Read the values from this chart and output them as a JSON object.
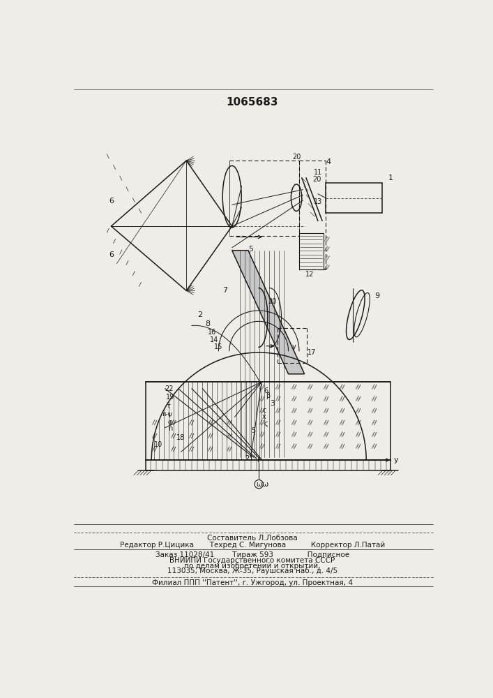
{
  "title": "1065683",
  "bg": "#f0ede8",
  "lc": "#1a1a1a",
  "footer": [
    [
      353,
      845,
      "Составитель Л.Лобзова",
      7.5
    ],
    [
      353,
      858,
      "Редактор Р.Цицика       Техред С. Мигунова           Корректор Л.Патай",
      7.5
    ],
    [
      353,
      876,
      "Заказ 11028/41        Тираж 593               Подписное",
      7.5
    ],
    [
      353,
      887,
      "ВНИИПИ Государственного комитета СССР",
      7.5
    ],
    [
      353,
      897,
      "по делам изобретений и открытий,",
      7.5
    ],
    [
      353,
      907,
      "113035, Москва, Ж-35, Раушская наб., д. 4/5",
      7.5
    ],
    [
      353,
      928,
      "Филиал ППП ''Патент'', г. Ужгород, ул. Проектная, 4",
      7.5
    ]
  ]
}
